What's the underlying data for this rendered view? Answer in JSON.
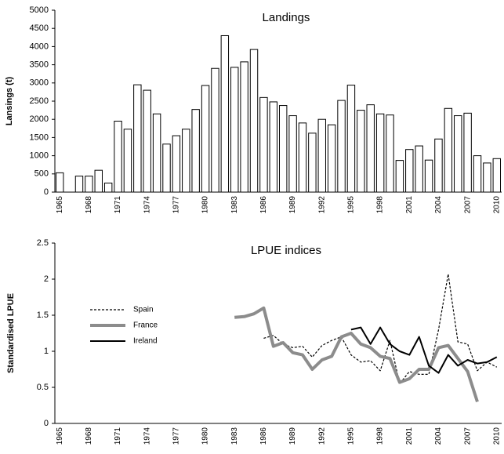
{
  "chart_data": [
    {
      "type": "bar",
      "title": "Landings",
      "y_label": "Lansings (t)",
      "categories": [
        "1965",
        null,
        null,
        "1968",
        null,
        null,
        "1971",
        null,
        null,
        "1974",
        null,
        null,
        "1977",
        null,
        null,
        "1980",
        null,
        null,
        "1983",
        null,
        null,
        "1986",
        null,
        null,
        "1989",
        null,
        null,
        "1992",
        null,
        null,
        "1995",
        null,
        null,
        "1998",
        null,
        null,
        "2001",
        null,
        null,
        "2004",
        null,
        null,
        "2007",
        null,
        null,
        "2010"
      ],
      "values": [
        530,
        null,
        440,
        440,
        600,
        250,
        1950,
        1730,
        2950,
        2800,
        2150,
        1320,
        1550,
        1730,
        2270,
        2930,
        3400,
        4300,
        3430,
        3580,
        3920,
        2600,
        2480,
        2380,
        2100,
        1900,
        1620,
        2000,
        1850,
        2520,
        2940,
        2250,
        2400,
        2150,
        2120,
        870,
        1170,
        1270,
        880,
        1460,
        2300,
        2100,
        2170,
        1000,
        800,
        920
      ],
      "color": "#ffffff",
      "ylim": [
        0,
        5000
      ],
      "yticks": [
        0,
        500,
        1000,
        1500,
        2000,
        2500,
        3000,
        3500,
        4000,
        4500,
        5000
      ]
    },
    {
      "type": "line",
      "title": "LPUE indices",
      "y_label": "Standardised LPUE",
      "categories": [
        "1965",
        null,
        null,
        "1968",
        null,
        null,
        "1971",
        null,
        null,
        "1974",
        null,
        null,
        "1977",
        null,
        null,
        "1980",
        null,
        null,
        "1983",
        null,
        null,
        "1986",
        null,
        null,
        "1989",
        null,
        null,
        "1992",
        null,
        null,
        "1995",
        null,
        null,
        "1998",
        null,
        null,
        "2001",
        null,
        null,
        "2004",
        null,
        null,
        "2007",
        null,
        null,
        "2010"
      ],
      "series": [
        {
          "name": "Spain",
          "color": "#000000",
          "line_style": "dashed",
          "linewidth": 1.2,
          "values": [
            null,
            null,
            null,
            null,
            null,
            null,
            null,
            null,
            null,
            null,
            null,
            null,
            null,
            null,
            null,
            null,
            null,
            null,
            null,
            null,
            null,
            1.18,
            1.22,
            1.1,
            1.05,
            1.07,
            0.92,
            1.08,
            1.15,
            1.2,
            0.95,
            0.85,
            0.87,
            0.73,
            1.15,
            0.55,
            0.72,
            0.68,
            0.68,
            1.3,
            2.07,
            1.13,
            1.1,
            0.73,
            0.85,
            0.78
          ]
        },
        {
          "name": "France",
          "color": "#8c8c8c",
          "line_style": "solid",
          "linewidth": 4,
          "values": [
            null,
            null,
            null,
            null,
            null,
            null,
            null,
            null,
            null,
            null,
            null,
            null,
            null,
            null,
            null,
            null,
            null,
            null,
            1.47,
            1.48,
            1.52,
            1.6,
            1.07,
            1.12,
            0.98,
            0.95,
            0.75,
            0.88,
            0.93,
            1.2,
            1.25,
            1.1,
            1.05,
            0.93,
            0.9,
            0.57,
            0.62,
            0.75,
            0.75,
            1.05,
            1.08,
            0.9,
            0.72,
            0.3,
            null,
            null
          ]
        },
        {
          "name": "Ireland",
          "color": "#000000",
          "line_style": "solid",
          "linewidth": 2,
          "values": [
            null,
            null,
            null,
            null,
            null,
            null,
            null,
            null,
            null,
            null,
            null,
            null,
            null,
            null,
            null,
            null,
            null,
            null,
            null,
            null,
            null,
            null,
            null,
            null,
            null,
            null,
            null,
            null,
            null,
            null,
            1.3,
            1.33,
            1.1,
            1.33,
            1.1,
            1.0,
            0.95,
            1.2,
            0.8,
            0.7,
            0.95,
            0.8,
            0.88,
            0.83,
            0.85,
            0.92
          ]
        }
      ],
      "legend": "left",
      "ylim": [
        0,
        2.5
      ],
      "yticks": [
        0,
        0.5,
        1,
        1.5,
        2,
        2.5
      ]
    }
  ]
}
